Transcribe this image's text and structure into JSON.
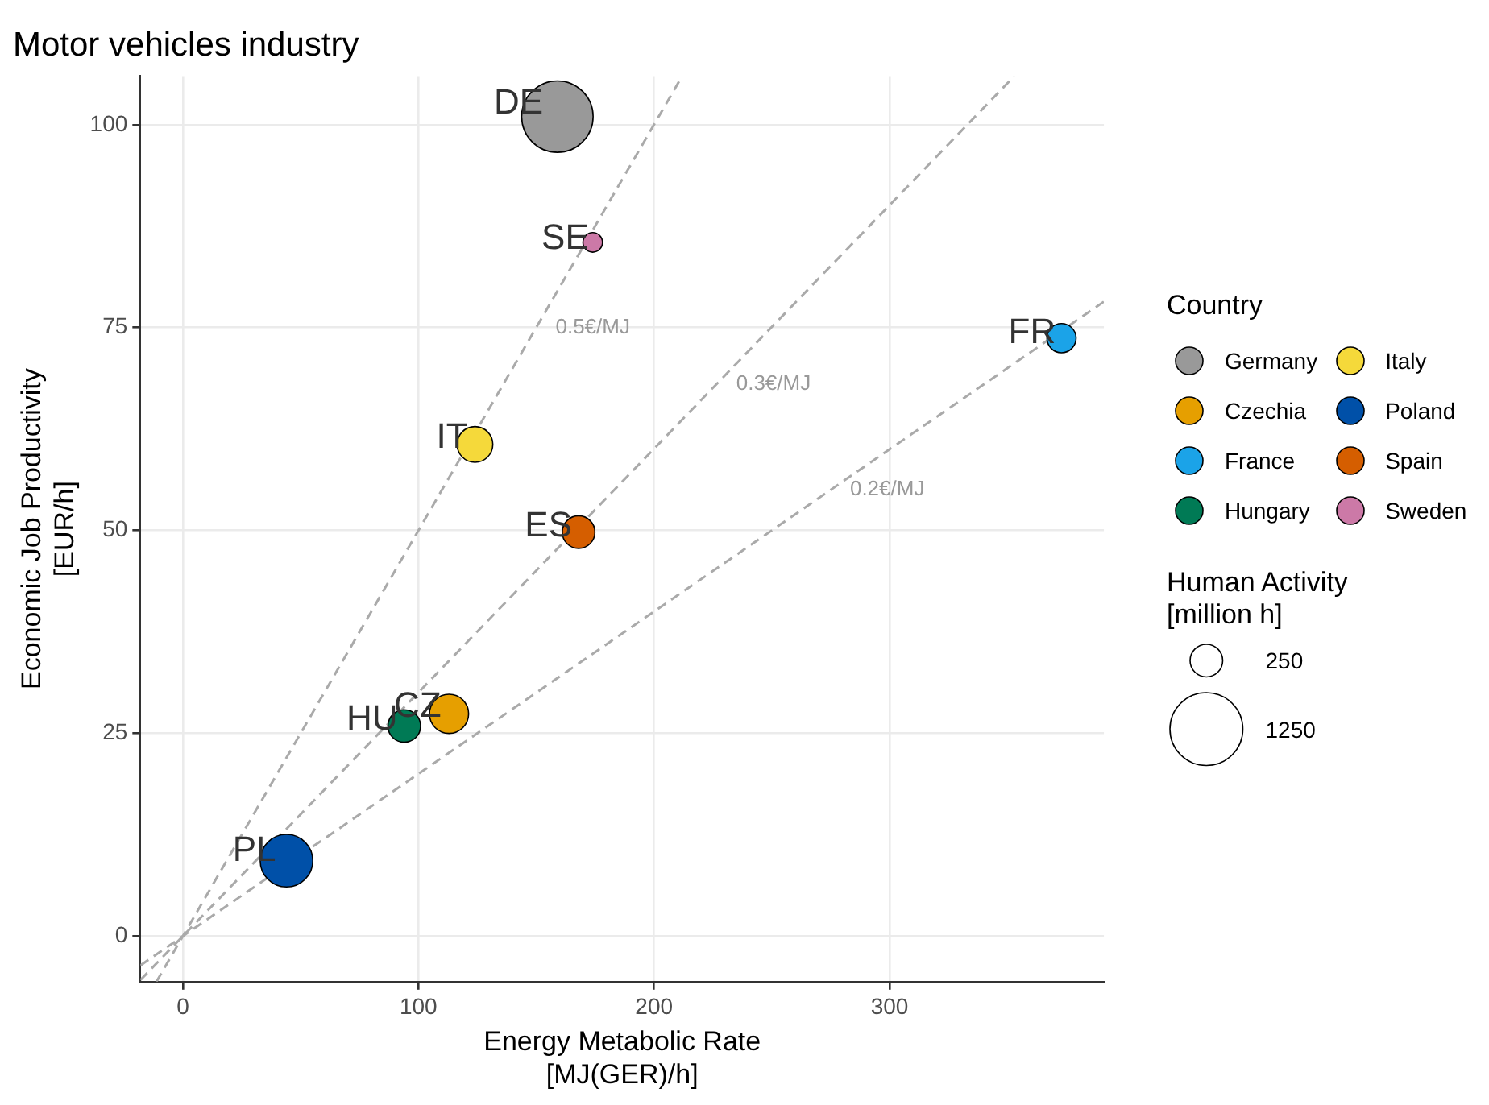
{
  "chart_data": {
    "type": "bubble",
    "title": "Motor vehicles industry",
    "xlabel": "Energy Metabolic Rate\n[MJ(GER)/h]",
    "ylabel": "Economic Job Productivity\n[EUR/h]",
    "legend_title": "Country",
    "legend": "right",
    "grid": true,
    "xlim": [
      -18,
      391
    ],
    "xticks": [
      0,
      100,
      200,
      300
    ],
    "ylim": [
      -5.6,
      106
    ],
    "yticks": [
      0,
      25,
      50,
      75,
      100
    ],
    "size_legend": [
      250,
      1250
    ],
    "series": [
      {
        "name": "Germany",
        "color": "#999999",
        "x": [
          159
        ],
        "values": [
          101
        ],
        "sizes": [
          1200
        ]
      },
      {
        "name": "Czechia",
        "color": "#e69f00",
        "x": [
          113
        ],
        "values": [
          27.4
        ],
        "sizes": [
          360
        ]
      },
      {
        "name": "France",
        "color": "#1ba3e8",
        "x": [
          373
        ],
        "values": [
          73.7
        ],
        "sizes": [
          200
        ]
      },
      {
        "name": "Hungary",
        "color": "#007a55",
        "x": [
          94
        ],
        "values": [
          25.9
        ],
        "sizes": [
          250
        ]
      },
      {
        "name": "Italy",
        "color": "#f5d93a",
        "x": [
          124
        ],
        "values": [
          60.6
        ],
        "sizes": [
          300
        ]
      },
      {
        "name": "Poland",
        "color": "#0050a8",
        "x": [
          44
        ],
        "values": [
          9.3
        ],
        "sizes": [
          650
        ]
      },
      {
        "name": "Spain",
        "color": "#d55e00",
        "x": [
          168
        ],
        "values": [
          49.8
        ],
        "sizes": [
          250
        ]
      },
      {
        "name": "Sweden",
        "color": "#cc79a7",
        "x": [
          174
        ],
        "values": [
          85.5
        ],
        "sizes": [
          90
        ]
      },
      {
        "type": "line",
        "color": "#aaaaaa",
        "line_style": "dashed",
        "x": [
          -11.2,
          212
        ],
        "values": [
          -5.6,
          106
        ]
      },
      {
        "type": "line",
        "color": "#aaaaaa",
        "line_style": "dashed",
        "x": [
          -18,
          353
        ],
        "values": [
          -5.4,
          106
        ]
      },
      {
        "type": "line",
        "color": "#aaaaaa",
        "line_style": "dashed",
        "x": [
          -18,
          391
        ],
        "values": [
          -3.6,
          78.2
        ]
      }
    ],
    "annotations": [
      {
        "text": "DE",
        "x": 159,
        "y": 101
      },
      {
        "text": "SE",
        "x": 174,
        "y": 85.5
      },
      {
        "text": "FR",
        "x": 373,
        "y": 73.7
      },
      {
        "text": "IT",
        "x": 124,
        "y": 60.6
      },
      {
        "text": "ES",
        "x": 168,
        "y": 49.8
      },
      {
        "text": "CZ",
        "x": 113,
        "y": 27.4
      },
      {
        "text": "HU",
        "x": 94,
        "y": 25.9
      },
      {
        "text": "PL",
        "x": 44,
        "y": 9.3
      },
      {
        "text": "0.5€/MJ",
        "x": 150,
        "y": 75
      },
      {
        "text": "0.3€/MJ",
        "x": 226.7,
        "y": 68
      },
      {
        "text": "0.2€/MJ",
        "x": 275,
        "y": 55
      },
      "Human Activity\n[million h]"
    ]
  }
}
